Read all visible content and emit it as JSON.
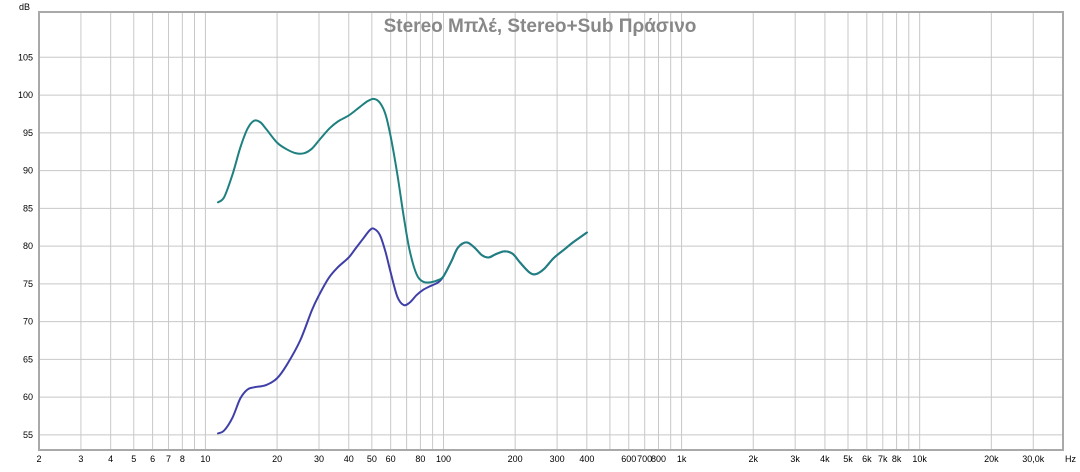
{
  "chart_data": {
    "type": "line",
    "title": "Stereo Μπλέ, Stereo+Sub Πράσινο",
    "ylabel": "dB",
    "xunit": "Hz",
    "xscale": "log",
    "xlim": [
      2,
      40000
    ],
    "ylim": [
      53,
      111
    ],
    "grid": true,
    "yticks": [
      55,
      60,
      65,
      70,
      75,
      80,
      85,
      90,
      95,
      100,
      105
    ],
    "xticks": [
      {
        "v": 2,
        "label": "2"
      },
      {
        "v": 3,
        "label": "3"
      },
      {
        "v": 4,
        "label": "4"
      },
      {
        "v": 5,
        "label": "5"
      },
      {
        "v": 6,
        "label": "6"
      },
      {
        "v": 7,
        "label": "7"
      },
      {
        "v": 8,
        "label": "8"
      },
      {
        "v": 10,
        "label": "10"
      },
      {
        "v": 20,
        "label": "20"
      },
      {
        "v": 30,
        "label": "30"
      },
      {
        "v": 40,
        "label": "40"
      },
      {
        "v": 50,
        "label": "50"
      },
      {
        "v": 60,
        "label": "60"
      },
      {
        "v": 80,
        "label": "80"
      },
      {
        "v": 100,
        "label": "100"
      },
      {
        "v": 200,
        "label": "200"
      },
      {
        "v": 300,
        "label": "300"
      },
      {
        "v": 400,
        "label": "400"
      },
      {
        "v": 600,
        "label": "600"
      },
      {
        "v": 700,
        "label": "700"
      },
      {
        "v": 800,
        "label": "800"
      },
      {
        "v": 1000,
        "label": "1k"
      },
      {
        "v": 2000,
        "label": "2k"
      },
      {
        "v": 3000,
        "label": "3k"
      },
      {
        "v": 4000,
        "label": "4k"
      },
      {
        "v": 5000,
        "label": "5k"
      },
      {
        "v": 6000,
        "label": "6k"
      },
      {
        "v": 7000,
        "label": "7k"
      },
      {
        "v": 8000,
        "label": "8k"
      },
      {
        "v": 10000,
        "label": "10k"
      },
      {
        "v": 20000,
        "label": "20k"
      },
      {
        "v": 30000,
        "label": "30,0k"
      }
    ],
    "series": [
      {
        "color": "#3f3fa8",
        "points": [
          [
            11.3,
            55.2
          ],
          [
            12,
            55.6
          ],
          [
            13,
            57.3
          ],
          [
            14,
            59.8
          ],
          [
            15,
            61.0
          ],
          [
            16,
            61.3
          ],
          [
            18,
            61.6
          ],
          [
            20,
            62.5
          ],
          [
            22,
            64.3
          ],
          [
            25,
            67.5
          ],
          [
            28,
            71.5
          ],
          [
            30,
            73.5
          ],
          [
            33,
            75.8
          ],
          [
            36,
            77.2
          ],
          [
            40,
            78.5
          ],
          [
            43,
            79.8
          ],
          [
            46,
            81.0
          ],
          [
            49,
            82.1
          ],
          [
            51,
            82.3
          ],
          [
            54,
            81.5
          ],
          [
            57,
            79.3
          ],
          [
            60,
            76.5
          ],
          [
            64,
            73.3
          ],
          [
            68,
            72.2
          ],
          [
            72,
            72.5
          ],
          [
            77,
            73.5
          ],
          [
            82,
            74.2
          ],
          [
            88,
            74.7
          ],
          [
            95,
            75.2
          ],
          [
            100,
            76.0
          ],
          [
            108,
            78.0
          ],
          [
            115,
            79.8
          ],
          [
            125,
            80.5
          ],
          [
            135,
            79.8
          ],
          [
            145,
            78.8
          ],
          [
            155,
            78.5
          ],
          [
            165,
            78.9
          ],
          [
            180,
            79.3
          ],
          [
            195,
            79.0
          ],
          [
            210,
            77.8
          ],
          [
            230,
            76.5
          ],
          [
            245,
            76.3
          ],
          [
            265,
            77.0
          ],
          [
            290,
            78.4
          ],
          [
            320,
            79.5
          ],
          [
            350,
            80.5
          ],
          [
            380,
            81.3
          ],
          [
            400,
            81.8
          ]
        ]
      },
      {
        "color": "#1f8080",
        "points": [
          [
            11.3,
            85.8
          ],
          [
            12,
            86.5
          ],
          [
            13,
            89.5
          ],
          [
            14,
            93.0
          ],
          [
            15,
            95.5
          ],
          [
            16,
            96.6
          ],
          [
            17,
            96.4
          ],
          [
            18,
            95.5
          ],
          [
            20,
            93.7
          ],
          [
            22,
            92.8
          ],
          [
            24,
            92.3
          ],
          [
            26,
            92.3
          ],
          [
            28,
            92.9
          ],
          [
            30,
            94.0
          ],
          [
            33,
            95.5
          ],
          [
            36,
            96.5
          ],
          [
            40,
            97.3
          ],
          [
            44,
            98.3
          ],
          [
            48,
            99.2
          ],
          [
            51,
            99.5
          ],
          [
            54,
            99.0
          ],
          [
            57,
            97.5
          ],
          [
            60,
            94.5
          ],
          [
            64,
            89.5
          ],
          [
            68,
            84.0
          ],
          [
            72,
            79.5
          ],
          [
            77,
            76.3
          ],
          [
            82,
            75.3
          ],
          [
            88,
            75.2
          ],
          [
            95,
            75.5
          ],
          [
            100,
            76.0
          ],
          [
            108,
            78.0
          ],
          [
            115,
            79.8
          ],
          [
            125,
            80.5
          ],
          [
            135,
            79.8
          ],
          [
            145,
            78.8
          ],
          [
            155,
            78.5
          ],
          [
            165,
            78.9
          ],
          [
            180,
            79.3
          ],
          [
            195,
            79.0
          ],
          [
            210,
            77.8
          ],
          [
            230,
            76.5
          ],
          [
            245,
            76.3
          ],
          [
            265,
            77.0
          ],
          [
            290,
            78.4
          ],
          [
            320,
            79.5
          ],
          [
            350,
            80.5
          ],
          [
            380,
            81.3
          ],
          [
            400,
            81.8
          ]
        ]
      }
    ]
  }
}
